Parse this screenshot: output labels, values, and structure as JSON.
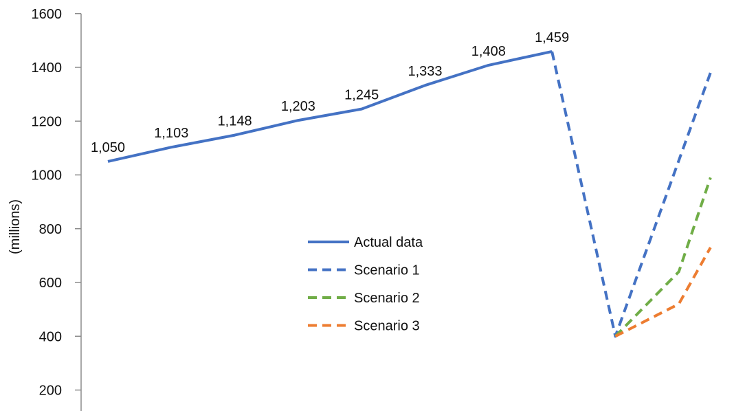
{
  "chart_data": {
    "type": "line",
    "title": "",
    "xlabel": "",
    "ylabel": "(millions)",
    "ylim": [
      150,
      1600
    ],
    "yticks": [
      200,
      400,
      600,
      800,
      1000,
      1200,
      1400,
      1600
    ],
    "y_tick_labels": [
      "200",
      "400",
      "600",
      "800",
      "1000",
      "1200",
      "1400",
      "1600"
    ],
    "x": [
      1,
      2,
      3,
      4,
      5,
      6,
      7,
      8,
      9
    ],
    "grid": false,
    "legend_position": "center",
    "series": [
      {
        "name": "Actual data",
        "style": "solid",
        "color": "#4472C4",
        "points": [
          [
            1,
            1050
          ],
          [
            2,
            1103
          ],
          [
            3,
            1148
          ],
          [
            4,
            1203
          ],
          [
            5,
            1245
          ],
          [
            6,
            1333
          ],
          [
            7,
            1408
          ],
          [
            8,
            1459
          ]
        ],
        "data_labels": [
          "1,050",
          "1,103",
          "1,148",
          "1,203",
          "1,245",
          "1,333",
          "1,408",
          "1,459"
        ]
      },
      {
        "name": "Scenario 1",
        "style": "dashed",
        "color": "#4472C4",
        "points": [
          [
            8,
            1459
          ],
          [
            9,
            400
          ],
          [
            10.5,
            1380
          ]
        ]
      },
      {
        "name": "Scenario 2",
        "style": "dashed",
        "color": "#70AD47",
        "points": [
          [
            9,
            400
          ],
          [
            10,
            640
          ],
          [
            10.5,
            990
          ]
        ]
      },
      {
        "name": "Scenario 3",
        "style": "dashed",
        "color": "#ED7D31",
        "points": [
          [
            9,
            400
          ],
          [
            10,
            520
          ],
          [
            10.5,
            730
          ]
        ]
      }
    ]
  }
}
